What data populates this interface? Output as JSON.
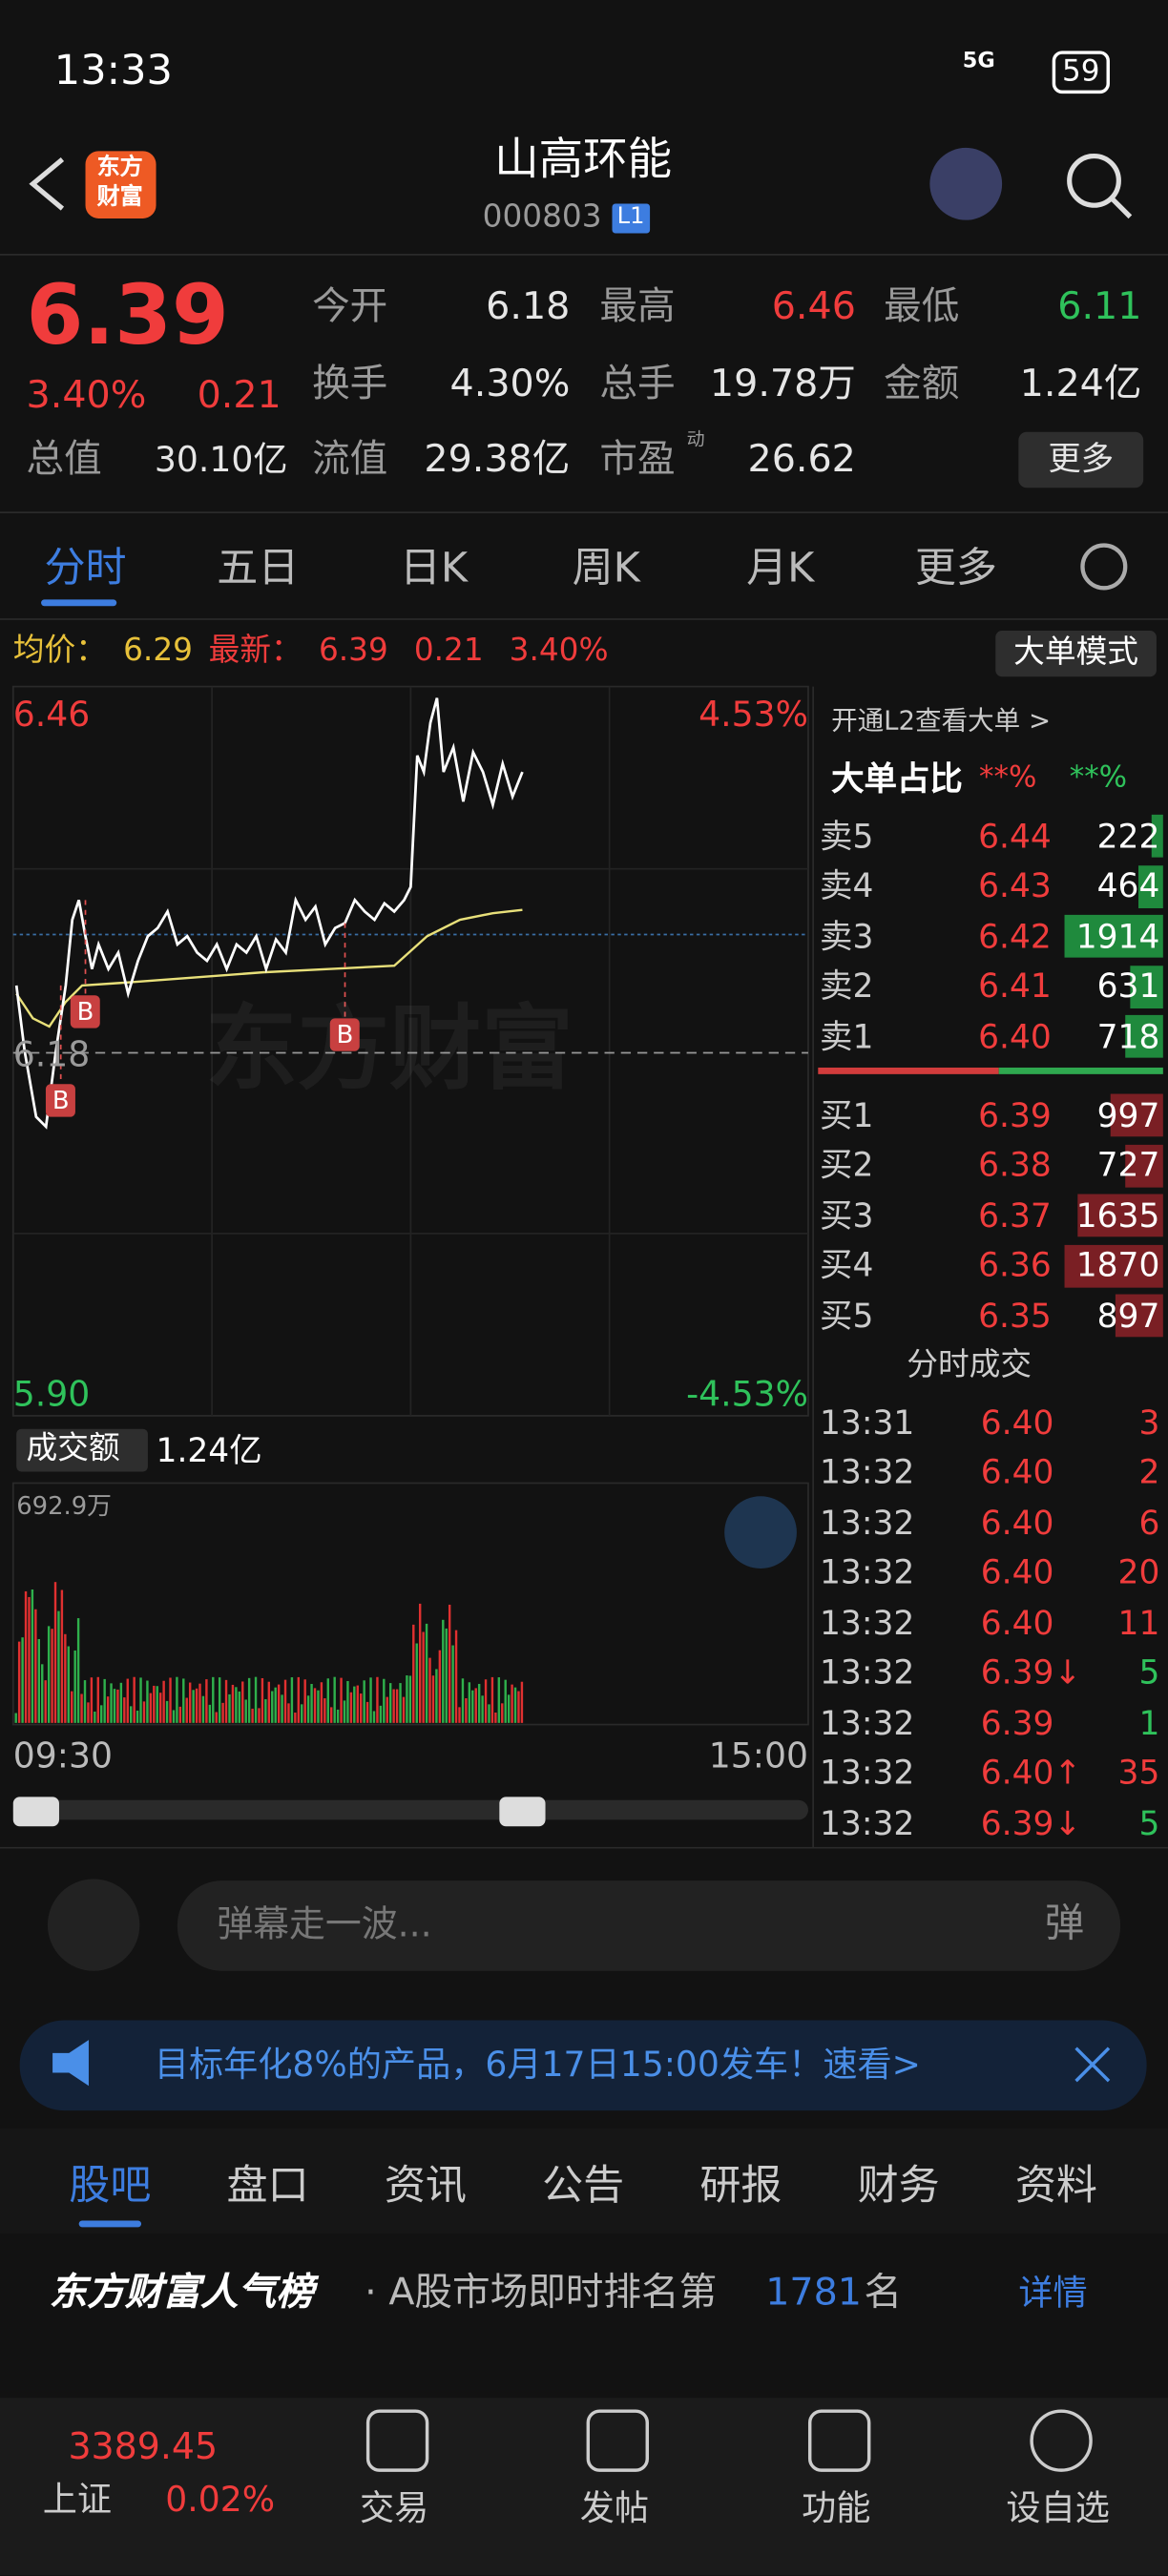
{
  "status": {
    "time": "13:33",
    "network": "5G",
    "battery": "59"
  },
  "header": {
    "logo": [
      "东方",
      "财富"
    ],
    "title": "山高环能",
    "code": "000803",
    "badge": "L1"
  },
  "quote": {
    "price": "6.39",
    "percent": "3.40%",
    "change": "0.21",
    "more": "更多",
    "stats": [
      {
        "label": "今开",
        "value": "6.18",
        "color": "#e6e6e6"
      },
      {
        "label": "最高",
        "value": "6.46",
        "color": "#f03c3c"
      },
      {
        "label": "最低",
        "value": "6.11",
        "color": "#2fc25b"
      },
      {
        "label": "换手",
        "value": "4.30%",
        "color": "#e6e6e6"
      },
      {
        "label": "总手",
        "value": "19.78万",
        "color": "#e6e6e6"
      },
      {
        "label": "金额",
        "value": "1.24亿",
        "color": "#e6e6e6"
      },
      {
        "label": "流值",
        "value": "29.38亿",
        "color": "#e6e6e6"
      },
      {
        "label": "市盈",
        "value": "26.62",
        "color": "#e6e6e6"
      }
    ],
    "total_label": "总值",
    "total_value": "30.10亿",
    "pe_sup": "动"
  },
  "tabs": [
    "分时",
    "五日",
    "日K",
    "周K",
    "月K",
    "更多"
  ],
  "infobar": {
    "avg_label": "均价：",
    "avg": "6.29",
    "last_label": "最新：",
    "last": "6.39",
    "change": "0.21",
    "percent": "3.40%",
    "mode": "大单模式"
  },
  "chart": {
    "top_price": "6.46",
    "top_pct": "4.53%",
    "mid_price": "6.18",
    "bottom_price": "5.90",
    "bottom_pct": "-4.53%",
    "watermark": "东方财富",
    "markers": [
      "B",
      "B",
      "B"
    ],
    "volume_label": "成交额",
    "volume_total": "1.24亿",
    "volume_max": "692.9万",
    "time_start": "09:30",
    "time_end": "15:00"
  },
  "orderbook": {
    "l2": "开通L2查看大单 >",
    "ratio_label": "大单占比",
    "ratio_sell": "**%",
    "ratio_buy": "**%",
    "sells": [
      [
        "卖5",
        "6.44",
        222
      ],
      [
        "卖4",
        "6.43",
        464
      ],
      [
        "卖3",
        "6.42",
        1914
      ],
      [
        "卖2",
        "6.41",
        631
      ],
      [
        "卖1",
        "6.40",
        718
      ]
    ],
    "buys": [
      [
        "买1",
        "6.39",
        997
      ],
      [
        "买2",
        "6.38",
        727
      ],
      [
        "买3",
        "6.37",
        1635
      ],
      [
        "买4",
        "6.36",
        1870
      ],
      [
        "买5",
        "6.35",
        897
      ]
    ],
    "trades_title": "分时成交",
    "trades": [
      {
        "time": "13:31",
        "price": "6.40",
        "volume": "3",
        "color": "#f03c3c"
      },
      {
        "time": "13:32",
        "price": "6.40",
        "volume": "2",
        "color": "#f03c3c"
      },
      {
        "time": "13:32",
        "price": "6.40",
        "volume": "6",
        "color": "#f03c3c"
      },
      {
        "time": "13:32",
        "price": "6.40",
        "volume": "20",
        "color": "#f03c3c"
      },
      {
        "time": "13:32",
        "price": "6.40",
        "volume": "11",
        "color": "#f03c3c"
      },
      {
        "time": "13:32",
        "price": "6.39↓",
        "volume": "5",
        "color": "#2fc25b"
      },
      {
        "time": "13:32",
        "price": "6.39",
        "volume": "1",
        "color": "#2fc25b"
      },
      {
        "time": "13:32",
        "price": "6.40↑",
        "volume": "35",
        "color": "#f03c3c"
      },
      {
        "time": "13:32",
        "price": "6.39↓",
        "volume": "5",
        "color": "#2fc25b"
      }
    ]
  },
  "danmu": {
    "placeholder": "弹幕走一波...",
    "button": "弹"
  },
  "banner": {
    "text": "目标年化8%的产品，6月17日15:00发车！速看>"
  },
  "tabs2": [
    "股吧",
    "盘口",
    "资讯",
    "公告",
    "研报",
    "财务",
    "资料"
  ],
  "rank": {
    "title": "东方财富人气榜",
    "text": "· A股市场即时排名第",
    "rank": "1781",
    "suffix": "名",
    "detail": "详情"
  },
  "nav": {
    "index_value": "3389.45",
    "index_name": "上证",
    "index_pct": "0.02%",
    "items": [
      "交易",
      "发帖",
      "功能",
      "设自选"
    ]
  }
}
